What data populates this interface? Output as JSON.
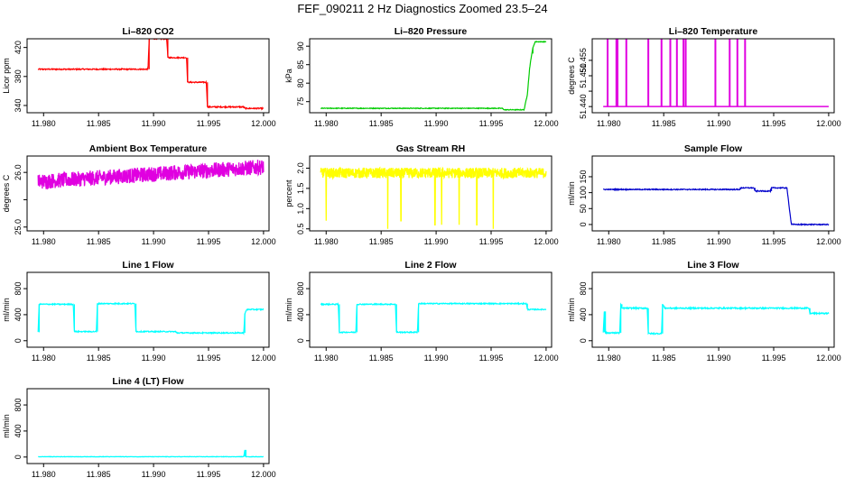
{
  "main_title": "FEF_090211  2 Hz Diagnostics Zoomed 23.5–24",
  "chart_data": [
    {
      "type": "line",
      "title": "Li–820 CO2",
      "ylabel": "Licor ppm",
      "color": "#ff0000",
      "xlim": [
        11.9785,
        12.0005
      ],
      "ylim": [
        330,
        432
      ],
      "xticks": [
        "11.980",
        "11.985",
        "11.990",
        "11.995",
        "12.000"
      ],
      "yticks": [
        340,
        380,
        420
      ],
      "ytick_labels": [
        "340",
        "380",
        "420"
      ],
      "noise": 0.8,
      "series": [
        {
          "x": [
            11.9795,
            11.9895,
            11.9896,
            11.9912,
            11.9913,
            11.993,
            11.9931,
            11.9948,
            11.9949,
            11.9982,
            11.9983,
            12.0
          ],
          "y": [
            390,
            390,
            432,
            432,
            406,
            406,
            372,
            372,
            338,
            338,
            336,
            336
          ]
        }
      ]
    },
    {
      "type": "line",
      "title": "Li–820 Pressure",
      "ylabel": "kPa",
      "color": "#00cc00",
      "xlim": [
        11.9785,
        12.0005
      ],
      "ylim": [
        72,
        92
      ],
      "xticks": [
        "11.980",
        "11.985",
        "11.990",
        "11.995",
        "12.000"
      ],
      "yticks": [
        75,
        80,
        85,
        90
      ],
      "ytick_labels": [
        "75",
        "80",
        "85",
        "90"
      ],
      "noise": 0.1,
      "series": [
        {
          "x": [
            11.9795,
            11.996,
            11.9962,
            11.998,
            11.9983,
            11.9985,
            11.9987,
            11.9988,
            11.999,
            12.0
          ],
          "y": [
            73.2,
            73.2,
            72.8,
            72.8,
            77,
            84,
            88,
            89.5,
            91.2,
            91.2
          ]
        }
      ]
    },
    {
      "type": "line",
      "title": "Li–820 Temperature",
      "ylabel": "degrees C",
      "color": "#e000e0",
      "xlim": [
        11.9785,
        12.0005
      ],
      "ylim": [
        51.438,
        51.462
      ],
      "xticks": [
        "11.980",
        "11.985",
        "11.990",
        "11.995",
        "12.000"
      ],
      "yticks": [
        51.44,
        51.445,
        51.45,
        51.455
      ],
      "ytick_labels": [
        "51.440",
        "",
        "51.450",
        "51.455"
      ],
      "baseline": 51.44,
      "spike_top": 51.462,
      "spikes": [
        11.9799,
        11.9807,
        11.9808,
        11.9816,
        11.9836,
        11.9848,
        11.9856,
        11.9862,
        11.9868,
        11.987,
        11.9897,
        11.991,
        11.9917,
        11.9924
      ],
      "x_end": 12.0
    },
    {
      "type": "line",
      "title": "Ambient Box Temperature",
      "ylabel": "degrees C",
      "color": "#e000e0",
      "xlim": [
        11.9785,
        12.0005
      ],
      "ylim": [
        24.93,
        26.3
      ],
      "xticks": [
        "11.980",
        "11.985",
        "11.990",
        "11.995",
        "12.000"
      ],
      "yticks": [
        25.0,
        25.5,
        26.0
      ],
      "ytick_labels": [
        "25.0",
        "",
        "26.0"
      ],
      "noise": 0.14,
      "dense": true,
      "series": [
        {
          "x": [
            11.9795,
            12.0
          ],
          "y": [
            25.83,
            26.1
          ]
        }
      ]
    },
    {
      "type": "line",
      "title": "Gas Stream RH",
      "ylabel": "percent",
      "color": "#ffff00",
      "xlim": [
        11.9785,
        12.0005
      ],
      "ylim": [
        0.45,
        2.3
      ],
      "xticks": [
        "11.980",
        "11.985",
        "11.990",
        "11.995",
        "12.000"
      ],
      "yticks": [
        0.5,
        1.0,
        1.5,
        2.0
      ],
      "ytick_labels": [
        "0.5",
        "1.0",
        "1.5",
        "2.0"
      ],
      "noise": 0.13,
      "dense": true,
      "series": [
        {
          "x": [
            11.9795,
            12.0
          ],
          "y": [
            1.88,
            1.88
          ]
        }
      ],
      "dips": [
        [
          11.98,
          0.7
        ],
        [
          11.9856,
          0.5
        ],
        [
          11.9868,
          0.7
        ],
        [
          11.9899,
          0.6
        ],
        [
          11.9905,
          0.6
        ],
        [
          11.9921,
          0.6
        ],
        [
          11.9937,
          0.6
        ],
        [
          11.9952,
          0.5
        ]
      ]
    },
    {
      "type": "line",
      "title": "Sample Flow",
      "ylabel": "ml/min",
      "color": "#0000cc",
      "xlim": [
        11.9785,
        12.0005
      ],
      "ylim": [
        -20,
        215
      ],
      "xticks": [
        "11.980",
        "11.985",
        "11.990",
        "11.995",
        "12.000"
      ],
      "yticks": [
        0,
        50,
        100,
        150
      ],
      "ytick_labels": [
        "0",
        "50",
        "100",
        "150"
      ],
      "noise": 1.5,
      "series": [
        {
          "x": [
            11.9795,
            11.9919,
            11.992,
            11.9932,
            11.9933,
            11.9947,
            11.9948,
            11.9962,
            11.9966,
            11.9968,
            12.0
          ],
          "y": [
            110,
            110,
            115,
            115,
            105,
            105,
            115,
            115,
            2,
            0,
            0
          ]
        }
      ]
    },
    {
      "type": "line",
      "title": "Line 1 Flow",
      "ylabel": "ml/min",
      "color": "#00ffff",
      "xlim": [
        11.9785,
        12.0005
      ],
      "ylim": [
        -100,
        1050
      ],
      "xticks": [
        "11.980",
        "11.985",
        "11.990",
        "11.995",
        "12.000"
      ],
      "yticks": [
        0,
        400,
        800
      ],
      "ytick_labels": [
        "0",
        "400",
        "800"
      ],
      "noise": 8,
      "series": [
        {
          "x": [
            11.9795,
            11.9796,
            11.9797,
            11.9827,
            11.9828,
            11.9848,
            11.9849,
            11.9883,
            11.9884,
            11.992,
            11.9921,
            11.9982,
            11.9983,
            11.9985,
            12.0
          ],
          "y": [
            130,
            560,
            560,
            560,
            140,
            140,
            570,
            570,
            140,
            140,
            120,
            120,
            420,
            480,
            480
          ]
        }
      ]
    },
    {
      "type": "line",
      "title": "Line 2 Flow",
      "ylabel": "ml/min",
      "color": "#00ffff",
      "xlim": [
        11.9785,
        12.0005
      ],
      "ylim": [
        -100,
        1050
      ],
      "xticks": [
        "11.980",
        "11.985",
        "11.990",
        "11.995",
        "12.000"
      ],
      "yticks": [
        0,
        400,
        800
      ],
      "ytick_labels": [
        "0",
        "400",
        "800"
      ],
      "noise": 8,
      "series": [
        {
          "x": [
            11.9795,
            11.9811,
            11.9812,
            11.9827,
            11.9828,
            11.9847,
            11.9848,
            11.9863,
            11.9864,
            11.9883,
            11.9884,
            11.9982,
            11.9983,
            12.0
          ],
          "y": [
            560,
            560,
            130,
            130,
            560,
            560,
            560,
            560,
            130,
            130,
            570,
            570,
            480,
            480
          ]
        }
      ]
    },
    {
      "type": "line",
      "title": "Line 3 Flow",
      "ylabel": "ml/min",
      "color": "#00ffff",
      "xlim": [
        11.9785,
        12.0005
      ],
      "ylim": [
        -100,
        1050
      ],
      "xticks": [
        "11.980",
        "11.985",
        "11.990",
        "11.995",
        "12.000"
      ],
      "yticks": [
        0,
        400,
        800
      ],
      "ytick_labels": [
        "0",
        "400",
        "800"
      ],
      "noise": 10,
      "series": [
        {
          "x": [
            11.9795,
            11.9796,
            11.9797,
            11.981,
            11.9811,
            11.9812,
            11.9835,
            11.9836,
            11.9848,
            11.9849,
            11.9851,
            11.9982,
            11.9983,
            12.0
          ],
          "y": [
            130,
            450,
            120,
            120,
            560,
            500,
            500,
            110,
            110,
            560,
            500,
            500,
            420,
            420
          ]
        }
      ]
    },
    {
      "type": "line",
      "title": "Line 4 (LT) Flow",
      "ylabel": "ml/min",
      "color": "#00ffff",
      "xlim": [
        11.9785,
        12.0005
      ],
      "ylim": [
        -100,
        1050
      ],
      "xticks": [
        "11.980",
        "11.985",
        "11.990",
        "11.995",
        "12.000"
      ],
      "yticks": [
        0,
        400,
        800
      ],
      "ytick_labels": [
        "0",
        "400",
        "800"
      ],
      "noise": 3,
      "series": [
        {
          "x": [
            11.9795,
            11.9982,
            11.9983,
            11.9984,
            11.9985,
            12.0
          ],
          "y": [
            5,
            5,
            110,
            5,
            5,
            5
          ]
        }
      ]
    }
  ]
}
